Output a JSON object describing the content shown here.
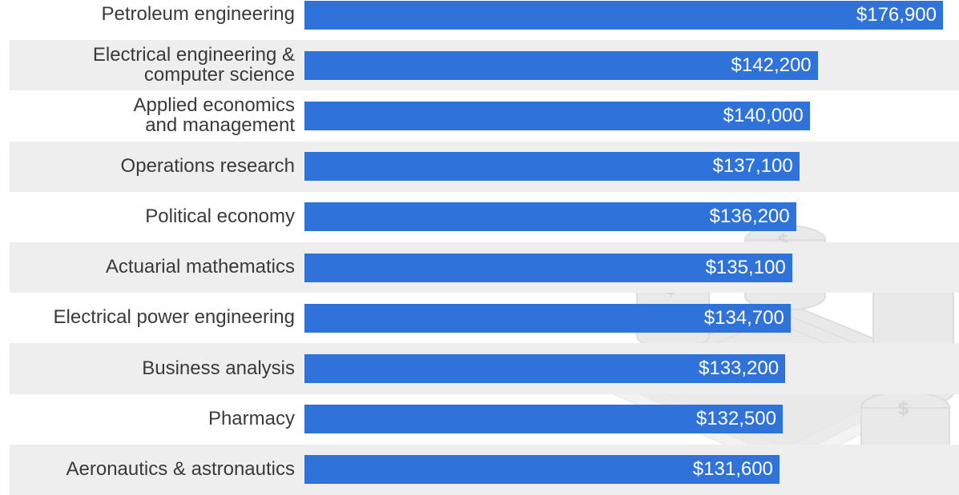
{
  "chart_data": {
    "type": "bar",
    "orientation": "horizontal",
    "categories": [
      "Petroleum engineering",
      "Electrical engineering &\ncomputer science",
      "Applied economics\nand management",
      "Operations research",
      "Political economy",
      "Actuarial mathematics",
      "Electrical power engineering",
      "Business analysis",
      "Pharmacy",
      "Aeronautics & astronautics"
    ],
    "values": [
      176900,
      142200,
      140000,
      137100,
      136200,
      135100,
      134700,
      133200,
      132500,
      131600
    ],
    "value_labels": [
      "$176,900",
      "$142,200",
      "$140,000",
      "$137,100",
      "$136,200",
      "$135,100",
      "$134,700",
      "$133,200",
      "$132,500",
      "$131,600"
    ],
    "title": "",
    "xlabel": "",
    "ylabel": "",
    "xlim": [
      0,
      176900
    ],
    "grid": false,
    "legend": "none",
    "colors": {
      "bar": "#2f73da",
      "band": "#eeeeee",
      "label": "#3a3a3a",
      "value_text": "#ffffff"
    }
  },
  "background_image": {
    "icon": "money-coins-stack-icon"
  }
}
